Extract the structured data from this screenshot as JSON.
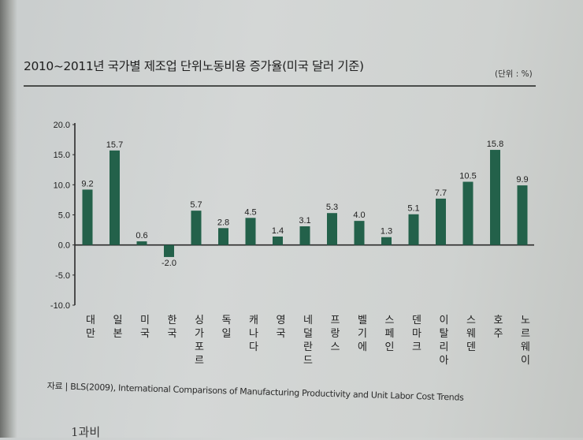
{
  "title": "2010~2011년 국가별 제조업 단위노동비용 증가율(미국 달러 기준)",
  "unit": "(단위 : %)",
  "source": "자료 | BLS(2009), International Comparisons of Manufacturing Productivity and Unit Labor Cost Trends",
  "bottom_fragment": "1과비",
  "colors": {
    "bar": "#23614a",
    "axis": "#2b2b2b",
    "text": "#1e1e1e"
  },
  "chart_data": {
    "type": "bar",
    "title": "2010~2011년 국가별 제조업 단위노동비용 증가율(미국 달러 기준)",
    "xlabel": "",
    "ylabel": "",
    "unit": "%",
    "categories": [
      "대만",
      "일본",
      "미국",
      "한국",
      "싱가포르",
      "독일",
      "캐나다",
      "영국",
      "네덜란드",
      "프랑스",
      "벨기에",
      "스페인",
      "덴마크",
      "이탈리아",
      "스웨덴",
      "호주",
      "노르웨이"
    ],
    "values": [
      9.2,
      15.7,
      0.6,
      -2.0,
      5.7,
      2.8,
      4.5,
      1.4,
      3.1,
      5.3,
      4.0,
      1.3,
      5.1,
      7.7,
      10.5,
      15.8,
      9.9
    ],
    "value_labels": [
      "9.2",
      "15.7",
      "0.6",
      "-2.0",
      "5.7",
      "2.8",
      "4.5",
      "1.4",
      "3.1",
      "5.3",
      "4.0",
      "1.3",
      "5.1",
      "7.7",
      "10.5",
      "15.8",
      "9.9"
    ],
    "y_ticks": [
      "20.0",
      "15.0",
      "10.0",
      "5.0",
      "0.0",
      "-5.0",
      "-10.0"
    ],
    "y_tick_values": [
      20,
      15,
      10,
      5,
      0,
      -5,
      -10
    ],
    "ylim": [
      -10,
      20
    ],
    "grid": false,
    "legend": "none"
  }
}
